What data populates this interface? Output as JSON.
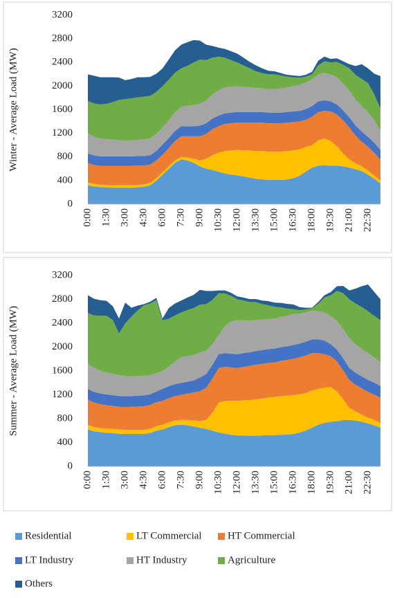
{
  "chart_data": [
    {
      "type": "area",
      "stacked": true,
      "ylabel": "Winter - Average Load (MW)",
      "categories": [
        "0:00",
        null,
        null,
        "1:30",
        null,
        null,
        "3:00",
        null,
        null,
        "4:30",
        null,
        null,
        "6:00",
        null,
        null,
        "7:30",
        null,
        null,
        "9:00",
        null,
        null,
        "10:30",
        null,
        null,
        "12:00",
        null,
        null,
        "13:30",
        null,
        null,
        "15:00",
        null,
        null,
        "16:30",
        null,
        null,
        "18:00",
        null,
        null,
        "19:30",
        null,
        null,
        "21:00",
        null,
        null,
        "22:30",
        null,
        null
      ],
      "ylim": [
        0,
        3200
      ],
      "yticks": [
        0,
        400,
        800,
        1200,
        1600,
        2000,
        2400,
        2800,
        3200
      ],
      "series": [
        {
          "name": "Residential",
          "color": "#5b9bd5",
          "values": [
            320,
            300,
            290,
            285,
            280,
            280,
            280,
            280,
            285,
            295,
            320,
            400,
            500,
            600,
            700,
            760,
            740,
            700,
            640,
            600,
            580,
            550,
            520,
            500,
            490,
            470,
            450,
            430,
            420,
            410,
            410,
            410,
            420,
            440,
            480,
            550,
            620,
            650,
            660,
            650,
            650,
            640,
            620,
            590,
            560,
            500,
            430,
            350
          ]
        },
        {
          "name": "LT Commercial",
          "color": "#ffc000",
          "values": [
            50,
            45,
            40,
            40,
            40,
            40,
            40,
            40,
            40,
            40,
            40,
            40,
            40,
            40,
            40,
            40,
            50,
            70,
            100,
            170,
            250,
            320,
            380,
            410,
            430,
            440,
            460,
            470,
            480,
            480,
            480,
            480,
            480,
            470,
            450,
            420,
            380,
            430,
            450,
            420,
            330,
            220,
            140,
            100,
            80,
            70,
            60,
            50
          ]
        },
        {
          "name": "HT Commercial",
          "color": "#ed7d31",
          "values": [
            330,
            320,
            320,
            325,
            330,
            330,
            330,
            330,
            330,
            320,
            310,
            300,
            300,
            310,
            330,
            350,
            360,
            380,
            410,
            420,
            440,
            450,
            460,
            460,
            460,
            470,
            470,
            480,
            480,
            480,
            480,
            480,
            480,
            480,
            470,
            460,
            480,
            480,
            470,
            500,
            540,
            560,
            540,
            470,
            420,
            400,
            380,
            350
          ]
        },
        {
          "name": "LT Industry",
          "color": "#4472c4",
          "values": [
            160,
            160,
            160,
            160,
            160,
            160,
            160,
            160,
            160,
            160,
            160,
            160,
            170,
            170,
            170,
            170,
            170,
            170,
            180,
            180,
            180,
            180,
            180,
            180,
            180,
            180,
            180,
            180,
            180,
            180,
            180,
            180,
            180,
            180,
            180,
            180,
            180,
            180,
            180,
            170,
            170,
            170,
            170,
            170,
            170,
            170,
            170,
            170
          ]
        },
        {
          "name": "HT Industry",
          "color": "#a5a5a5",
          "values": [
            340,
            320,
            300,
            290,
            280,
            275,
            270,
            270,
            275,
            280,
            285,
            290,
            290,
            300,
            315,
            330,
            345,
            360,
            370,
            390,
            410,
            430,
            440,
            440,
            440,
            430,
            420,
            410,
            400,
            400,
            400,
            410,
            420,
            430,
            440,
            450,
            450,
            460,
            460,
            460,
            460,
            450,
            450,
            440,
            430,
            420,
            380,
            330
          ]
        },
        {
          "name": "Agriculture",
          "color": "#70ad47",
          "values": [
            550,
            560,
            580,
            600,
            640,
            680,
            700,
            710,
            720,
            725,
            720,
            710,
            700,
            690,
            670,
            650,
            680,
            720,
            750,
            680,
            620,
            570,
            500,
            450,
            400,
            360,
            320,
            280,
            260,
            250,
            250,
            220,
            180,
            150,
            120,
            100,
            90,
            150,
            200,
            200,
            260,
            320,
            380,
            420,
            460,
            490,
            440,
            370
          ]
        },
        {
          "name": "Others",
          "color": "#255e91",
          "values": [
            450,
            470,
            460,
            450,
            420,
            380,
            320,
            330,
            340,
            330,
            320,
            310,
            300,
            340,
            380,
            400,
            400,
            380,
            320,
            260,
            200,
            150,
            150,
            150,
            150,
            130,
            110,
            100,
            80,
            60,
            50,
            40,
            30,
            30,
            30,
            30,
            40,
            80,
            80,
            60,
            60,
            60,
            70,
            150,
            250,
            250,
            350,
            550
          ]
        }
      ]
    },
    {
      "type": "area",
      "stacked": true,
      "ylabel": "Summer - Average Load (MW)",
      "categories": [
        "0:00",
        null,
        null,
        "1:30",
        null,
        null,
        "3:00",
        null,
        null,
        "4:30",
        null,
        null,
        "6:00",
        null,
        null,
        "7:30",
        null,
        null,
        "9:00",
        null,
        null,
        "10:30",
        null,
        null,
        "12:00",
        null,
        null,
        "13:30",
        null,
        null,
        "15:00",
        null,
        null,
        "16:30",
        null,
        null,
        "18:00",
        null,
        null,
        "19:30",
        null,
        null,
        "21:00",
        null,
        null,
        "22:30",
        null,
        null
      ],
      "ylim": [
        0,
        3200
      ],
      "yticks": [
        0,
        400,
        800,
        1200,
        1600,
        2000,
        2400,
        2800,
        3200
      ],
      "series": [
        {
          "name": "Residential",
          "color": "#5b9bd5",
          "values": [
            620,
            590,
            575,
            565,
            560,
            550,
            545,
            545,
            545,
            545,
            560,
            600,
            620,
            660,
            690,
            700,
            690,
            670,
            650,
            630,
            600,
            570,
            550,
            530,
            520,
            520,
            515,
            515,
            520,
            525,
            525,
            530,
            535,
            545,
            570,
            600,
            650,
            700,
            730,
            750,
            760,
            775,
            780,
            770,
            750,
            720,
            690,
            650
          ]
        },
        {
          "name": "LT Commercial",
          "color": "#ffc000",
          "values": [
            80,
            70,
            70,
            70,
            70,
            70,
            70,
            70,
            70,
            70,
            70,
            75,
            80,
            80,
            80,
            80,
            90,
            100,
            110,
            150,
            300,
            500,
            550,
            570,
            580,
            590,
            600,
            610,
            620,
            630,
            640,
            650,
            650,
            650,
            640,
            630,
            620,
            600,
            590,
            580,
            500,
            350,
            200,
            150,
            120,
            100,
            90,
            80
          ]
        },
        {
          "name": "HT Commercial",
          "color": "#ed7d31",
          "values": [
            420,
            410,
            400,
            390,
            385,
            380,
            380,
            385,
            390,
            395,
            400,
            400,
            400,
            405,
            410,
            420,
            440,
            470,
            500,
            540,
            570,
            580,
            570,
            560,
            550,
            560,
            570,
            580,
            580,
            580,
            580,
            590,
            600,
            610,
            620,
            630,
            630,
            600,
            560,
            520,
            500,
            490,
            470,
            450,
            440,
            430,
            425,
            420
          ]
        },
        {
          "name": "LT Industry",
          "color": "#4472c4",
          "values": [
            180,
            180,
            180,
            180,
            180,
            180,
            180,
            180,
            180,
            180,
            180,
            180,
            200,
            200,
            200,
            200,
            200,
            200,
            230,
            230,
            230,
            230,
            230,
            230,
            230,
            230,
            230,
            230,
            230,
            230,
            230,
            230,
            230,
            230,
            230,
            230,
            230,
            230,
            230,
            200,
            200,
            200,
            200,
            200,
            200,
            200,
            200,
            200
          ]
        },
        {
          "name": "HT Industry",
          "color": "#a5a5a5",
          "values": [
            420,
            400,
            380,
            370,
            360,
            350,
            340,
            330,
            330,
            330,
            320,
            310,
            300,
            330,
            380,
            430,
            430,
            425,
            420,
            390,
            350,
            320,
            450,
            540,
            570,
            550,
            530,
            520,
            510,
            505,
            500,
            505,
            510,
            520,
            500,
            490,
            480,
            475,
            470,
            470,
            480,
            490,
            500,
            480,
            460,
            450,
            420,
            400
          ]
        },
        {
          "name": "Agriculture",
          "color": "#70ad47",
          "values": [
            850,
            880,
            920,
            950,
            900,
            700,
            880,
            1000,
            1100,
            1180,
            1200,
            1220,
            850,
            800,
            770,
            750,
            770,
            790,
            800,
            780,
            740,
            700,
            550,
            430,
            350,
            330,
            310,
            300,
            260,
            230,
            200,
            160,
            120,
            80,
            60,
            50,
            40,
            120,
            250,
            350,
            500,
            600,
            650,
            680,
            700,
            700,
            700,
            700
          ]
        },
        {
          "name": "Others",
          "color": "#255e91",
          "values": [
            300,
            280,
            260,
            250,
            230,
            250,
            350,
            150,
            80,
            20,
            30,
            40,
            30,
            180,
            200,
            200,
            210,
            220,
            250,
            220,
            150,
            50,
            50,
            50,
            50,
            50,
            50,
            50,
            60,
            70,
            70,
            75,
            80,
            80,
            50,
            30,
            10,
            30,
            40,
            50,
            80,
            120,
            150,
            250,
            350,
            450,
            400,
            350
          ]
        }
      ]
    }
  ]
}
